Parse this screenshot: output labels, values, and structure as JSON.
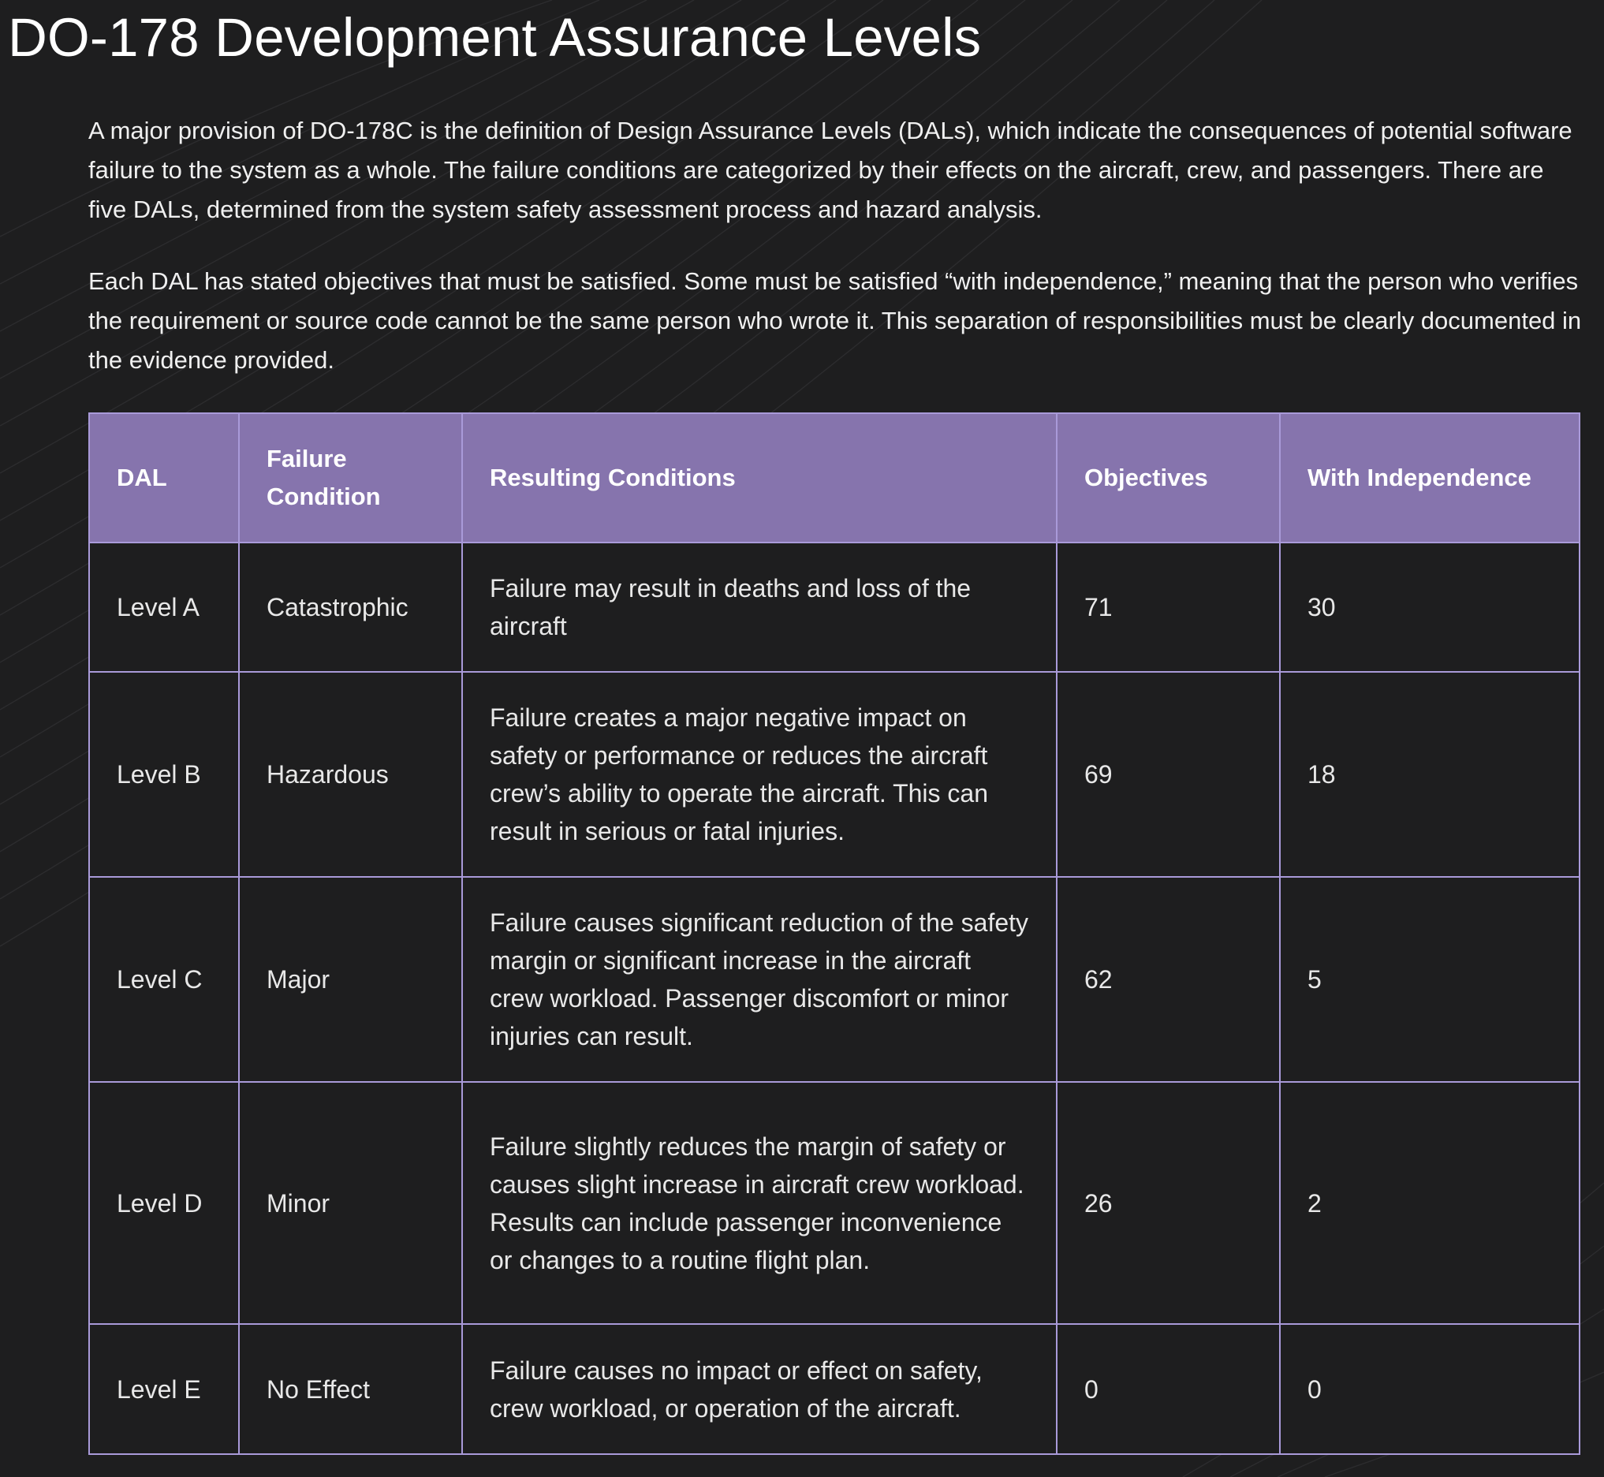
{
  "page": {
    "title": "DO-178 Development Assurance Levels",
    "paragraphs": [
      "A major provision of DO-178C is the definition of Design Assurance Levels (DALs), which indicate the consequences of potential software failure to the system as a whole. The failure conditions are categorized by their effects on the aircraft, crew, and passengers. There are five DALs, determined from the system safety assessment process and hazard analysis.",
      "Each DAL has stated objectives that must be satisfied. Some must be satisfied “with independence,” meaning that the person who verifies the requirement or source code cannot be the same person who wrote it. This separation of responsibilities must be clearly documented in the evidence provided."
    ]
  },
  "table": {
    "headers": [
      "DAL",
      "Failure Condition",
      "Resulting Conditions",
      "Objectives",
      "With Independence"
    ],
    "rows": [
      [
        "Level A",
        "Catastrophic",
        "Failure may result in deaths and loss of the aircraft",
        "71",
        "30"
      ],
      [
        "Level B",
        "Hazardous",
        "Failure creates a major negative impact on safety or performance or reduces the aircraft crew’s ability to operate the aircraft. This can result in serious or fatal injuries.",
        "69",
        "18"
      ],
      [
        "Level C",
        "Major",
        "Failure causes significant reduction of the safety margin or significant increase in the aircraft crew workload. Passenger discomfort or minor injuries can result.",
        "62",
        "5"
      ],
      [
        "Level D",
        "Minor",
        "Failure slightly reduces the margin of safety or causes slight increase in aircraft crew workload. Results can include passenger inconvenience or changes to a routine flight plan.",
        "26",
        "2"
      ],
      [
        "Level E",
        "No Effect",
        "Failure causes no impact or effect on safety, crew workload, or operation of the aircraft.",
        "0",
        "0"
      ]
    ]
  },
  "colors": {
    "background": "#1e1e1f",
    "header_fill": "#8674ad",
    "table_border": "#a99ad9",
    "text": "#ffffff"
  }
}
